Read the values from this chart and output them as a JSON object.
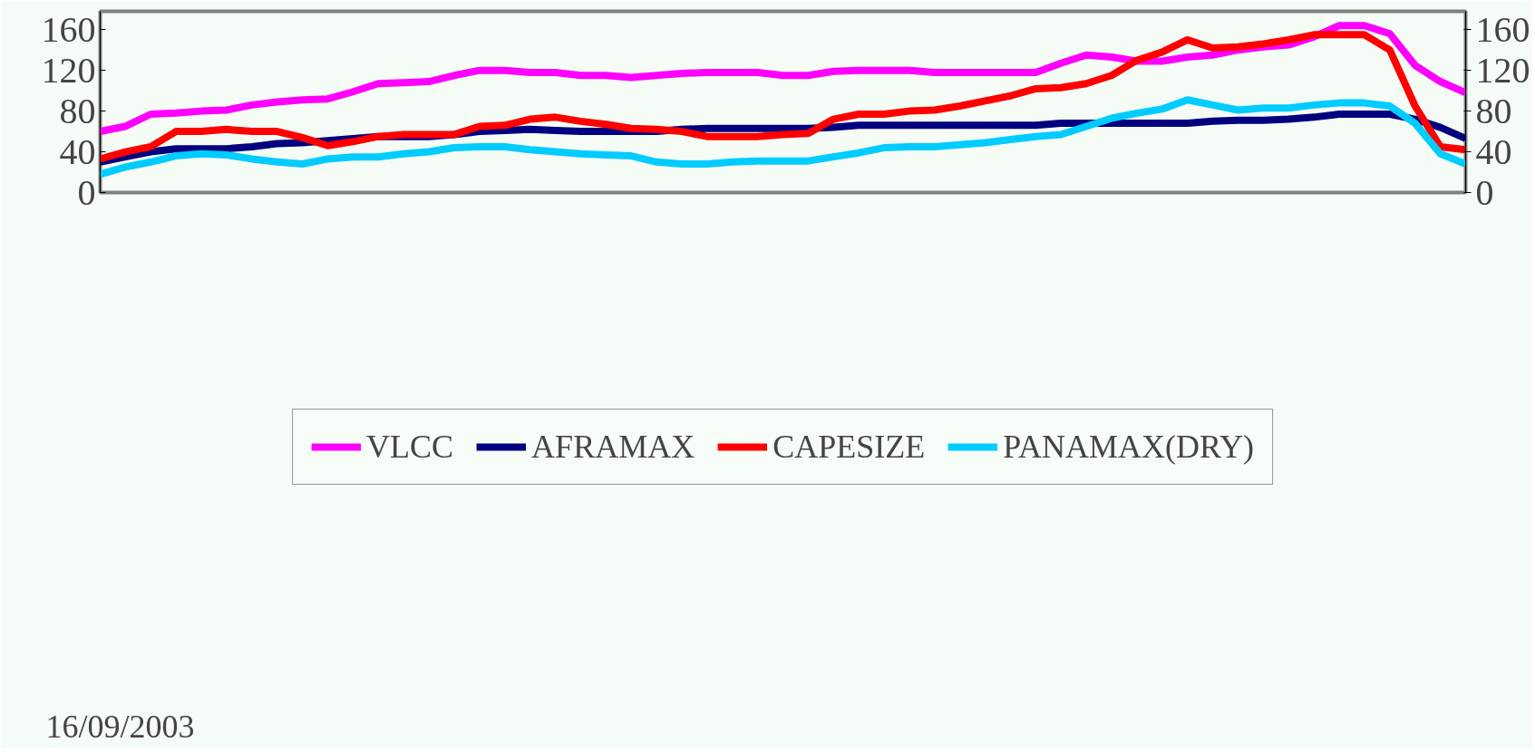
{
  "chart_data": {
    "type": "line",
    "categories": [
      null,
      null,
      null,
      null,
      null,
      null,
      null,
      null,
      null,
      null,
      null,
      null,
      null,
      null,
      null,
      null,
      null,
      null,
      null,
      null,
      null,
      null,
      null,
      null,
      null,
      null,
      null,
      null,
      null,
      null,
      null,
      null,
      null,
      null,
      null,
      null,
      null,
      null,
      null,
      null,
      null,
      null,
      null,
      null,
      null,
      null,
      null,
      null,
      null,
      null,
      null,
      null,
      null,
      null,
      null
    ],
    "series": [
      {
        "name": "VLCC",
        "color": "#ff00ff",
        "values": [
          60,
          65,
          77,
          78,
          80,
          81,
          86,
          89,
          91,
          92,
          99,
          107,
          108,
          109,
          115,
          120,
          120,
          118,
          118,
          115,
          115,
          113,
          115,
          117,
          118,
          118,
          118,
          115,
          115,
          119,
          120,
          120,
          120,
          118,
          118,
          118,
          118,
          118,
          127,
          135,
          133,
          129,
          129,
          133,
          135,
          140,
          143,
          145,
          153,
          164,
          164,
          156,
          125,
          109,
          98
        ]
      },
      {
        "name": "AFRAMAX",
        "color": "#000080",
        "values": [
          30,
          35,
          40,
          43,
          43,
          43,
          45,
          48,
          49,
          51,
          53,
          55,
          55,
          55,
          57,
          60,
          61,
          62,
          61,
          60,
          60,
          60,
          60,
          62,
          63,
          63,
          63,
          63,
          63,
          64,
          66,
          66,
          66,
          66,
          66,
          66,
          66,
          66,
          68,
          68,
          68,
          68,
          68,
          68,
          70,
          71,
          71,
          72,
          74,
          77,
          77,
          77,
          72,
          64,
          53
        ]
      },
      {
        "name": "CAPESIZE",
        "color": "#ff0000",
        "values": [
          33,
          40,
          45,
          60,
          60,
          62,
          60,
          60,
          54,
          46,
          50,
          55,
          57,
          57,
          57,
          65,
          66,
          72,
          74,
          70,
          67,
          63,
          62,
          60,
          55,
          55,
          55,
          57,
          58,
          72,
          77,
          77,
          80,
          81,
          85,
          90,
          95,
          102,
          103,
          107,
          115,
          130,
          138,
          150,
          142,
          143,
          146,
          150,
          155,
          155,
          155,
          140,
          85,
          45,
          42
        ]
      },
      {
        "name": "PANAMAX(DRY)",
        "color": "#00ccff",
        "values": [
          18,
          25,
          30,
          36,
          38,
          37,
          33,
          30,
          28,
          33,
          35,
          35,
          38,
          40,
          44,
          45,
          45,
          42,
          40,
          38,
          37,
          36,
          30,
          28,
          28,
          30,
          31,
          31,
          31,
          35,
          39,
          44,
          45,
          45,
          47,
          49,
          52,
          55,
          57,
          65,
          73,
          78,
          82,
          91,
          86,
          81,
          83,
          83,
          86,
          88,
          88,
          85,
          68,
          38,
          28
        ]
      }
    ],
    "ylim": [
      0,
      178
    ],
    "yticks": [
      0,
      40,
      80,
      120,
      160
    ],
    "y2lim": [
      0,
      178
    ],
    "y2ticks": [
      0,
      40,
      80,
      120,
      160
    ],
    "tick_labels": "y",
    "grid": false,
    "legend": "bottom",
    "marker": "none",
    "line_style": "solid",
    "annotations": [
      "16/09/2003"
    ]
  }
}
